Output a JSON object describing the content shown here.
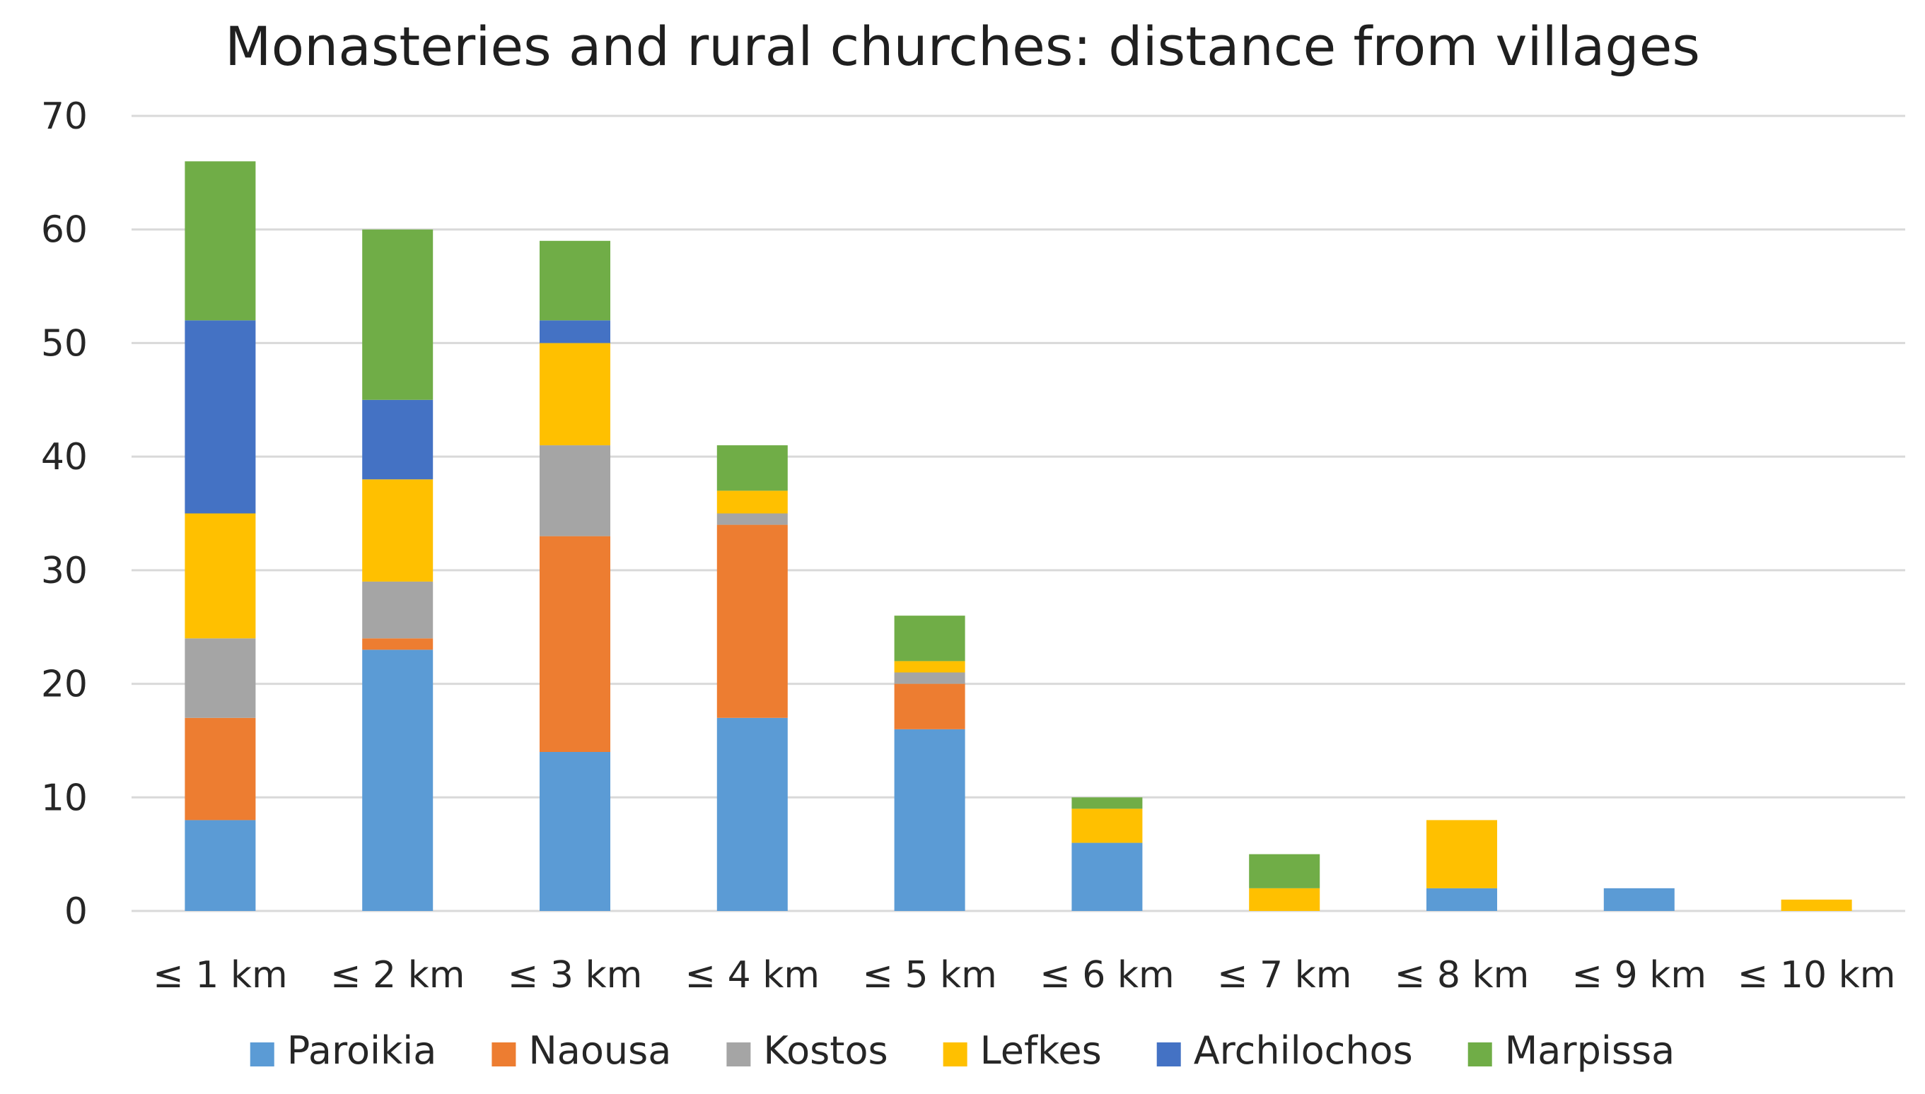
{
  "chart_data": {
    "type": "bar",
    "stacked": true,
    "title": "Monasteries and rural churches: distance from villages",
    "xlabel": "",
    "ylabel": "",
    "ylim": [
      0,
      70
    ],
    "yticks": [
      0,
      10,
      20,
      30,
      40,
      50,
      60,
      70
    ],
    "grid": true,
    "legend_position": "bottom",
    "categories": [
      "≤ 1 km",
      "≤ 2 km",
      "≤ 3 km",
      "≤ 4 km",
      "≤ 5 km",
      "≤ 6 km",
      "≤ 7 km",
      "≤ 8 km",
      "≤ 9 km",
      "≤ 10 km"
    ],
    "series": [
      {
        "name": "Paroikia",
        "color": "#5b9bd5",
        "values": [
          8,
          23,
          14,
          17,
          16,
          6,
          0,
          2,
          2,
          0
        ]
      },
      {
        "name": "Naousa",
        "color": "#ed7d31",
        "values": [
          9,
          1,
          19,
          17,
          4,
          0,
          0,
          0,
          0,
          0
        ]
      },
      {
        "name": "Kostos",
        "color": "#a5a5a5",
        "values": [
          7,
          5,
          8,
          1,
          1,
          0,
          0,
          0,
          0,
          0
        ]
      },
      {
        "name": "Lefkes",
        "color": "#ffc000",
        "values": [
          11,
          9,
          9,
          2,
          1,
          3,
          2,
          6,
          0,
          1
        ]
      },
      {
        "name": "Archilochos",
        "color": "#4472c4",
        "values": [
          17,
          7,
          2,
          0,
          0,
          0,
          0,
          0,
          0,
          0
        ]
      },
      {
        "name": "Marpissa",
        "color": "#70ad47",
        "values": [
          14,
          15,
          7,
          4,
          4,
          1,
          3,
          0,
          0,
          0
        ]
      }
    ]
  }
}
